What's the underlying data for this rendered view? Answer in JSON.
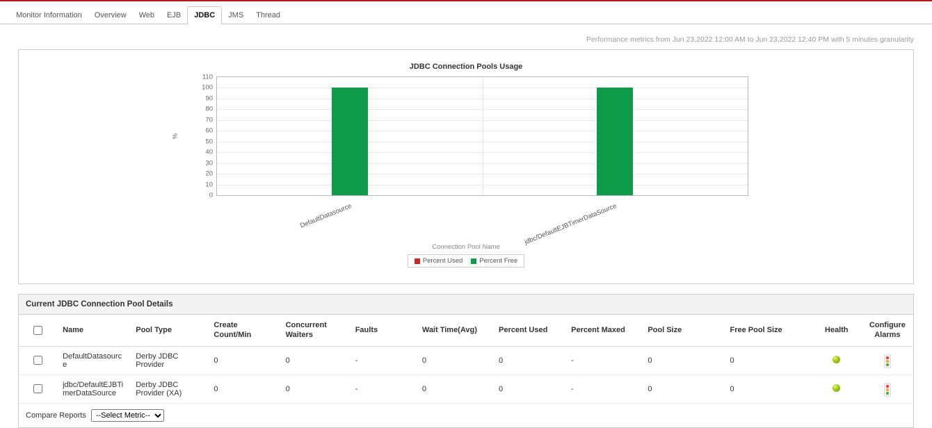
{
  "tabs": [
    {
      "label": "Monitor Information",
      "active": false
    },
    {
      "label": "Overview",
      "active": false
    },
    {
      "label": "Web",
      "active": false
    },
    {
      "label": "EJB",
      "active": false
    },
    {
      "label": "JDBC",
      "active": true
    },
    {
      "label": "JMS",
      "active": false
    },
    {
      "label": "Thread",
      "active": false
    }
  ],
  "metrics_note": "Performance metrics from Jun 23,2022 12:00 AM to Jun 23,2022 12:40 PM with 5 minutes granularity",
  "chart_data": {
    "type": "bar",
    "stacked": true,
    "title": "JDBC Connection Pools Usage",
    "categories": [
      "DefaultDatasource",
      "jdbc/DefaultEJBTimerDataSource"
    ],
    "series": [
      {
        "name": "Percent Used",
        "color": "#cc2b2b",
        "values": [
          0,
          0
        ]
      },
      {
        "name": "Percent Free",
        "color": "#0e9c4a",
        "values": [
          100,
          100
        ]
      }
    ],
    "xlabel": "Connection Pool Name",
    "ylabel": "%",
    "ylim": [
      0,
      110
    ],
    "yticks": [
      0,
      10,
      20,
      30,
      40,
      50,
      60,
      70,
      80,
      90,
      100,
      110
    ],
    "legend_position": "bottom",
    "grid": true
  },
  "table": {
    "title": "Current JDBC Connection Pool Details",
    "columns": [
      "Name",
      "Pool Type",
      "Create Count/Min",
      "Concurrent Waiters",
      "Faults",
      "Wait Time(Avg)",
      "Percent Used",
      "Percent Maxed",
      "Pool Size",
      "Free Pool Size",
      "Health",
      "Configure Alarms"
    ],
    "rows": [
      {
        "cells": [
          "DefaultDatasource",
          "Derby JDBC Provider",
          "0",
          "0",
          "-",
          "0",
          "0",
          "-",
          "0",
          "0"
        ],
        "health": "clear"
      },
      {
        "cells": [
          "jdbc/DefaultEJBTimerDataSource",
          "Derby JDBC Provider (XA)",
          "0",
          "0",
          "-",
          "0",
          "0",
          "-",
          "0",
          "0"
        ],
        "health": "clear"
      }
    ]
  },
  "footer": {
    "compare_reports_label": "Compare Reports",
    "metric_select_value": "--Select Metric--"
  }
}
